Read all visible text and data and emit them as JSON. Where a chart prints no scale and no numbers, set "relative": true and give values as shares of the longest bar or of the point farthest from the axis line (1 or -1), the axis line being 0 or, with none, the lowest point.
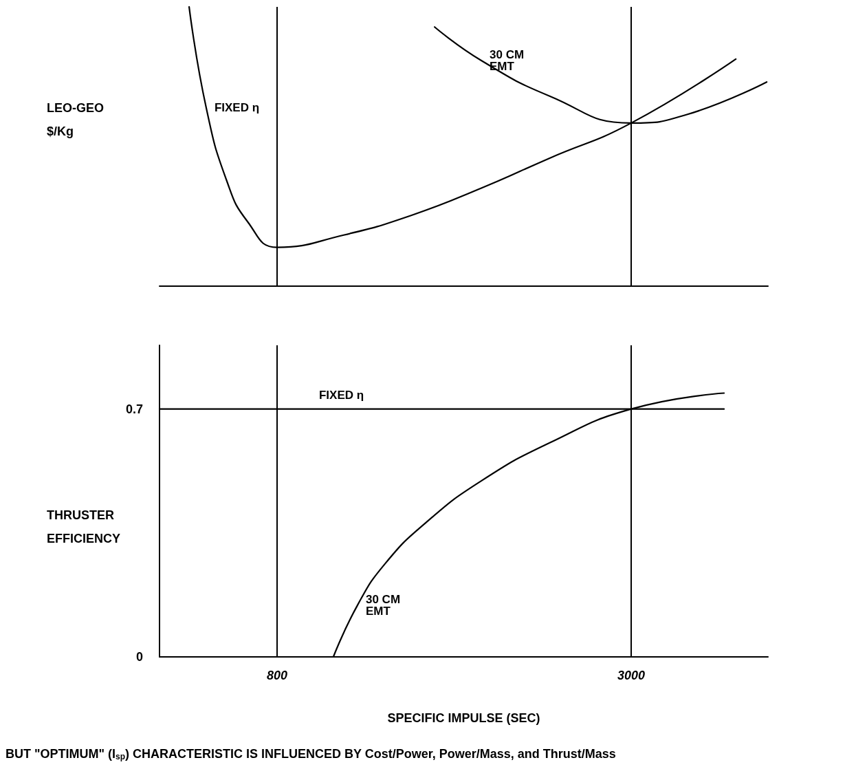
{
  "chart_data": [
    {
      "type": "line",
      "ylabel": "LEO-GEO $/Kg",
      "relative": true,
      "xlim": [
        70,
        3850
      ],
      "marker": "none",
      "line_style": "solid",
      "series": [
        {
          "name": "FIXED η",
          "color": "#000000",
          "x": [
            254,
            360,
            489,
            617,
            800,
            1214,
            1642,
            2069,
            2496,
            3000,
            3650
          ],
          "values": [
            1.0,
            0.639,
            0.375,
            0.231,
            0.139,
            0.183,
            0.255,
            0.351,
            0.459,
            0.584,
            0.813
          ]
        },
        {
          "name": "30 CM EMT",
          "color": "#000000",
          "x": [
            1779,
            2069,
            2496,
            3000,
            3350,
            3842
          ],
          "values": [
            0.928,
            0.808,
            0.68,
            0.584,
            0.615,
            0.731
          ]
        }
      ],
      "ref_lines": [
        {
          "axis": "x",
          "value": 800,
          "color": "#000000"
        },
        {
          "axis": "x",
          "value": 3000,
          "color": "#000000"
        }
      ]
    },
    {
      "type": "line",
      "ylabel": "THRUSTER EFFICIENCY",
      "xlabel": "SPECIFIC IMPULSE (SEC)",
      "xlim": [
        70,
        3850
      ],
      "ylim": [
        0,
        0.88
      ],
      "xticks": [
        800,
        3000
      ],
      "yticks": [
        0,
        0.7
      ],
      "marker": "none",
      "line_style": "solid",
      "series": [
        {
          "name": "FIXED η",
          "color": "#000000",
          "x": [
            70,
            1200,
            3577
          ],
          "values": [
            0.7,
            0.7,
            0.7
          ]
        },
        {
          "name": "30 CM EMT",
          "color": "#000000",
          "x": [
            1150,
            1300,
            1471,
            1727,
            2069,
            2496,
            3000,
            3577
          ],
          "values": [
            0,
            0.146,
            0.263,
            0.38,
            0.497,
            0.605,
            0.7,
            0.745
          ]
        }
      ],
      "ref_lines": [
        {
          "axis": "x",
          "value": 800,
          "color": "#000000"
        },
        {
          "axis": "x",
          "value": 3000,
          "color": "#000000"
        }
      ],
      "annotations": [
        "BUT \"OPTIMUM\" (I$_{sp}$) CHARACTERISTIC IS INFLUENCED BY Cost/Power, Power/Mass, and Thrust/Mass"
      ]
    }
  ]
}
